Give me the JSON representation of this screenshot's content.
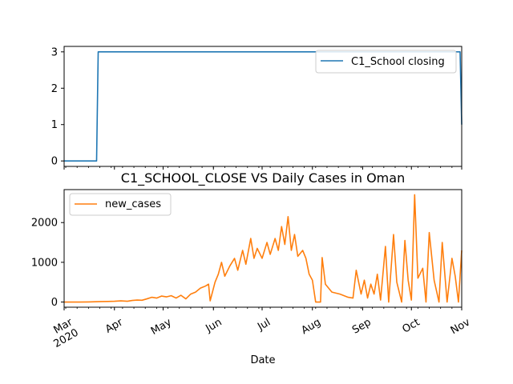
{
  "chart_data": [
    {
      "type": "line",
      "title": "",
      "xlabel": "",
      "ylabel": "",
      "ylim": [
        -0.15,
        3.15
      ],
      "yticks": [
        0,
        1,
        2,
        3
      ],
      "xlim": [
        "2020-03-01",
        "2020-11-01"
      ],
      "legend_position": "top-right",
      "grid": false,
      "series": [
        {
          "name": "C1_School closing",
          "color": "#1f77b4",
          "points": [
            [
              "2020-03-01",
              0
            ],
            [
              "2020-03-21",
              0
            ],
            [
              "2020-03-22",
              3
            ],
            [
              "2020-10-31",
              3
            ],
            [
              "2020-11-01",
              1
            ]
          ]
        }
      ]
    },
    {
      "type": "line",
      "title": "C1_SCHOOL_CLOSE VS Daily Cases in Oman",
      "xlabel": "Date",
      "ylabel": "",
      "ylim": [
        -130,
        2830
      ],
      "yticks": [
        0,
        1000,
        2000
      ],
      "yticklabels": [
        "0",
        "1000",
        "2000"
      ],
      "xlim": [
        "2020-03-01",
        "2020-11-01"
      ],
      "xticks": [
        "2020-03-01",
        "2020-04-01",
        "2020-05-01",
        "2020-06-01",
        "2020-07-01",
        "2020-08-01",
        "2020-09-01",
        "2020-10-01",
        "2020-11-01"
      ],
      "xticklabels": [
        "Mar\n2020",
        "Apr",
        "May",
        "Jun",
        "Jul",
        "Aug",
        "Sep",
        "Oct",
        "Nov"
      ],
      "legend_position": "top-left",
      "grid": false,
      "series": [
        {
          "name": "new_cases",
          "color": "#ff7f0e",
          "points": [
            [
              "2020-03-01",
              0
            ],
            [
              "2020-03-10",
              0
            ],
            [
              "2020-03-16",
              3
            ],
            [
              "2020-03-20",
              8
            ],
            [
              "2020-03-24",
              12
            ],
            [
              "2020-03-28",
              15
            ],
            [
              "2020-04-01",
              20
            ],
            [
              "2020-04-05",
              30
            ],
            [
              "2020-04-09",
              20
            ],
            [
              "2020-04-12",
              40
            ],
            [
              "2020-04-15",
              50
            ],
            [
              "2020-04-18",
              45
            ],
            [
              "2020-04-21",
              80
            ],
            [
              "2020-04-24",
              120
            ],
            [
              "2020-04-27",
              100
            ],
            [
              "2020-04-30",
              150
            ],
            [
              "2020-05-03",
              130
            ],
            [
              "2020-05-06",
              160
            ],
            [
              "2020-05-09",
              100
            ],
            [
              "2020-05-12",
              170
            ],
            [
              "2020-05-15",
              80
            ],
            [
              "2020-05-18",
              200
            ],
            [
              "2020-05-21",
              250
            ],
            [
              "2020-05-24",
              350
            ],
            [
              "2020-05-27",
              400
            ],
            [
              "2020-05-29",
              450
            ],
            [
              "2020-05-30",
              30
            ],
            [
              "2020-06-02",
              500
            ],
            [
              "2020-06-04",
              700
            ],
            [
              "2020-06-06",
              1000
            ],
            [
              "2020-06-08",
              650
            ],
            [
              "2020-06-11",
              900
            ],
            [
              "2020-06-14",
              1100
            ],
            [
              "2020-06-16",
              800
            ],
            [
              "2020-06-19",
              1300
            ],
            [
              "2020-06-21",
              950
            ],
            [
              "2020-06-24",
              1600
            ],
            [
              "2020-06-26",
              1100
            ],
            [
              "2020-06-28",
              1350
            ],
            [
              "2020-07-01",
              1100
            ],
            [
              "2020-07-04",
              1500
            ],
            [
              "2020-07-06",
              1200
            ],
            [
              "2020-07-09",
              1600
            ],
            [
              "2020-07-11",
              1300
            ],
            [
              "2020-07-13",
              1900
            ],
            [
              "2020-07-15",
              1450
            ],
            [
              "2020-07-17",
              2150
            ],
            [
              "2020-07-19",
              1300
            ],
            [
              "2020-07-21",
              1700
            ],
            [
              "2020-07-23",
              1150
            ],
            [
              "2020-07-26",
              1300
            ],
            [
              "2020-07-28",
              1100
            ],
            [
              "2020-07-30",
              700
            ],
            [
              "2020-08-01",
              550
            ],
            [
              "2020-08-03",
              0
            ],
            [
              "2020-08-06",
              0
            ],
            [
              "2020-08-07",
              1120
            ],
            [
              "2020-08-09",
              450
            ],
            [
              "2020-08-13",
              250
            ],
            [
              "2020-08-18",
              200
            ],
            [
              "2020-08-23",
              120
            ],
            [
              "2020-08-26",
              100
            ],
            [
              "2020-08-28",
              800
            ],
            [
              "2020-08-31",
              200
            ],
            [
              "2020-09-02",
              550
            ],
            [
              "2020-09-04",
              100
            ],
            [
              "2020-09-06",
              450
            ],
            [
              "2020-09-08",
              200
            ],
            [
              "2020-09-10",
              700
            ],
            [
              "2020-09-12",
              50
            ],
            [
              "2020-09-15",
              1400
            ],
            [
              "2020-09-17",
              0
            ],
            [
              "2020-09-20",
              1700
            ],
            [
              "2020-09-22",
              500
            ],
            [
              "2020-09-25",
              0
            ],
            [
              "2020-09-27",
              1550
            ],
            [
              "2020-09-29",
              550
            ],
            [
              "2020-10-01",
              50
            ],
            [
              "2020-10-03",
              2700
            ],
            [
              "2020-10-05",
              600
            ],
            [
              "2020-10-08",
              850
            ],
            [
              "2020-10-10",
              0
            ],
            [
              "2020-10-12",
              1750
            ],
            [
              "2020-10-15",
              550
            ],
            [
              "2020-10-18",
              0
            ],
            [
              "2020-10-20",
              1500
            ],
            [
              "2020-10-23",
              0
            ],
            [
              "2020-10-26",
              1100
            ],
            [
              "2020-10-28",
              650
            ],
            [
              "2020-10-30",
              0
            ],
            [
              "2020-11-01",
              1300
            ]
          ]
        }
      ]
    }
  ]
}
